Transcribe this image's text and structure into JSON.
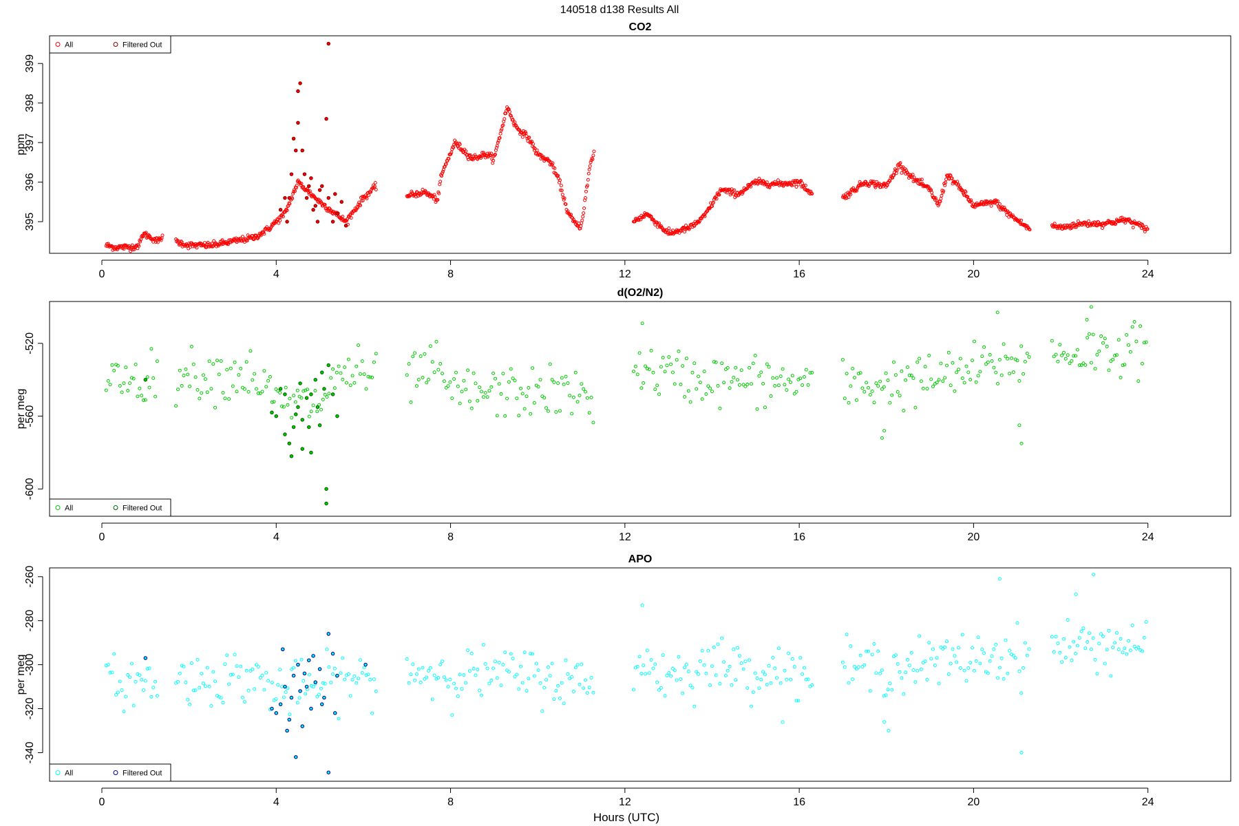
{
  "page_title": "140518   d138   Results All",
  "x_axis_label": "Hours (UTC)",
  "legend_labels": {
    "all": "All",
    "filtered": "Filtered Out"
  },
  "chart_data": [
    {
      "type": "scatter",
      "title": "CO2",
      "ylabel": "ppm",
      "xlim": [
        -1.2,
        25.9
      ],
      "ylim": [
        394.2,
        399.7
      ],
      "xticks": [
        0,
        4,
        8,
        12,
        16,
        20,
        24
      ],
      "yticks": [
        395,
        396,
        397,
        398,
        399
      ],
      "legend_position": "top-left",
      "colors": {
        "all": "#ff0000",
        "filtered": "#8b0000"
      },
      "profile": [
        [
          0.1,
          394.4
        ],
        [
          0.3,
          394.35
        ],
        [
          0.7,
          394.36
        ],
        [
          0.85,
          394.4
        ],
        [
          0.95,
          394.7
        ],
        [
          1.3,
          394.5
        ],
        [
          1.35,
          394.6
        ],
        [
          1.7,
          394.5
        ],
        [
          2.0,
          394.4
        ],
        [
          2.5,
          394.4
        ],
        [
          3.0,
          394.5
        ],
        [
          3.5,
          394.6
        ],
        [
          3.8,
          394.8
        ],
        [
          4.2,
          395.2
        ],
        [
          4.5,
          396.0
        ],
        [
          5.0,
          395.5
        ],
        [
          5.6,
          395.0
        ],
        [
          6.0,
          395.6
        ],
        [
          6.3,
          395.9
        ],
        [
          7.0,
          395.65
        ],
        [
          7.4,
          395.75
        ],
        [
          7.7,
          395.55
        ],
        [
          7.8,
          396.2
        ],
        [
          8.1,
          397.0
        ],
        [
          8.3,
          396.8
        ],
        [
          8.5,
          396.6
        ],
        [
          8.8,
          396.7
        ],
        [
          9.0,
          396.6
        ],
        [
          9.3,
          397.9
        ],
        [
          9.5,
          397.4
        ],
        [
          9.8,
          397.1
        ],
        [
          10.0,
          396.7
        ],
        [
          10.3,
          396.5
        ],
        [
          10.5,
          396.0
        ],
        [
          10.7,
          395.2
        ],
        [
          10.9,
          394.9
        ],
        [
          11.0,
          394.9
        ],
        [
          11.2,
          396.4
        ],
        [
          11.3,
          396.8
        ],
        [
          12.2,
          395.0
        ],
        [
          12.5,
          395.2
        ],
        [
          12.8,
          394.9
        ],
        [
          13.0,
          394.7
        ],
        [
          13.5,
          394.85
        ],
        [
          13.8,
          395.1
        ],
        [
          14.2,
          395.8
        ],
        [
          14.6,
          395.7
        ],
        [
          15.0,
          396.0
        ],
        [
          15.5,
          395.95
        ],
        [
          16.0,
          396.0
        ],
        [
          16.3,
          395.7
        ],
        [
          17.0,
          395.6
        ],
        [
          17.5,
          396.0
        ],
        [
          18.0,
          395.9
        ],
        [
          18.3,
          396.45
        ],
        [
          18.6,
          396.1
        ],
        [
          19.0,
          395.8
        ],
        [
          19.2,
          395.4
        ],
        [
          19.4,
          396.2
        ],
        [
          19.8,
          395.7
        ],
        [
          20.0,
          395.4
        ],
        [
          20.5,
          395.5
        ],
        [
          20.8,
          395.2
        ],
        [
          21.3,
          394.8
        ],
        [
          21.8,
          394.9
        ],
        [
          22.0,
          394.85
        ],
        [
          22.5,
          394.95
        ],
        [
          23.0,
          394.95
        ],
        [
          23.5,
          395.05
        ],
        [
          24.0,
          394.8
        ]
      ],
      "segments": [
        [
          0.1,
          1.4
        ],
        [
          1.7,
          6.3
        ],
        [
          7.0,
          11.3
        ],
        [
          12.2,
          16.3
        ],
        [
          17.0,
          21.3
        ],
        [
          21.8,
          24.0
        ]
      ],
      "filtered_points": [
        [
          4.1,
          395.3
        ],
        [
          4.2,
          395.6
        ],
        [
          4.25,
          395.0
        ],
        [
          4.3,
          395.6
        ],
        [
          4.35,
          396.2
        ],
        [
          4.4,
          397.1
        ],
        [
          4.45,
          396.8
        ],
        [
          4.5,
          398.3
        ],
        [
          4.55,
          398.5
        ],
        [
          4.6,
          396.8
        ],
        [
          4.65,
          396.2
        ],
        [
          4.7,
          395.6
        ],
        [
          4.75,
          395.9
        ],
        [
          4.8,
          396.1
        ],
        [
          4.9,
          395.4
        ],
        [
          5.0,
          395.8
        ],
        [
          5.05,
          395.9
        ],
        [
          5.15,
          397.6
        ],
        [
          5.2,
          395.6
        ],
        [
          5.3,
          395.0
        ],
        [
          5.4,
          395.2
        ],
        [
          5.5,
          395.5
        ],
        [
          5.6,
          394.9
        ],
        [
          5.2,
          399.5
        ],
        [
          4.5,
          397.5
        ],
        [
          4.95,
          395.0
        ],
        [
          4.85,
          395.3
        ],
        [
          5.35,
          395.7
        ]
      ],
      "scatter_spread": 0.04
    },
    {
      "type": "scatter",
      "title": "d(O2/N2)",
      "ylabel": "per meg",
      "xlim": [
        -1.2,
        25.9
      ],
      "ylim": [
        -615,
        -497
      ],
      "xticks": [
        0,
        4,
        8,
        12,
        16,
        20,
        24
      ],
      "yticks": [
        -600,
        -560,
        -520
      ],
      "legend_position": "bottom-left",
      "colors": {
        "all": "#00cc00",
        "filtered": "#006400"
      },
      "profile": [
        [
          0.1,
          -538
        ],
        [
          1.3,
          -540
        ],
        [
          1.7,
          -537
        ],
        [
          3.5,
          -537
        ],
        [
          4.0,
          -553
        ],
        [
          5.0,
          -553
        ],
        [
          5.5,
          -535
        ],
        [
          6.3,
          -540
        ],
        [
          7.0,
          -540
        ],
        [
          7.6,
          -533
        ],
        [
          8.0,
          -547
        ],
        [
          10.5,
          -547
        ],
        [
          11.3,
          -550
        ],
        [
          12.2,
          -535
        ],
        [
          14.0,
          -540
        ],
        [
          16.3,
          -542
        ],
        [
          17.0,
          -544
        ],
        [
          19.0,
          -540
        ],
        [
          20.0,
          -535
        ],
        [
          21.3,
          -528
        ],
        [
          21.8,
          -526
        ],
        [
          24.0,
          -522
        ]
      ],
      "segments": [
        [
          0.1,
          1.3
        ],
        [
          1.7,
          6.3
        ],
        [
          7.0,
          11.3
        ],
        [
          12.2,
          16.3
        ],
        [
          17.0,
          21.3
        ],
        [
          21.8,
          24.0
        ]
      ],
      "filtered_points": [
        [
          3.9,
          -558
        ],
        [
          4.0,
          -560
        ],
        [
          4.1,
          -545
        ],
        [
          4.2,
          -570
        ],
        [
          4.3,
          -575
        ],
        [
          4.4,
          -566
        ],
        [
          4.5,
          -555
        ],
        [
          4.6,
          -562
        ],
        [
          4.7,
          -550
        ],
        [
          4.8,
          -548
        ],
        [
          4.9,
          -540
        ],
        [
          5.0,
          -565
        ],
        [
          5.1,
          -545
        ],
        [
          5.2,
          -532
        ],
        [
          5.3,
          -548
        ],
        [
          5.4,
          -560
        ],
        [
          4.35,
          -582
        ],
        [
          4.6,
          -578
        ],
        [
          4.8,
          -580
        ],
        [
          5.15,
          -608
        ],
        [
          5.15,
          -600
        ],
        [
          4.2,
          -548
        ],
        [
          4.55,
          -542
        ],
        [
          4.95,
          -555
        ],
        [
          5.05,
          -536
        ],
        [
          4.75,
          -566
        ],
        [
          4.45,
          -559
        ],
        [
          1.0,
          -540
        ]
      ],
      "scatter_spread": 7,
      "outliers": [
        [
          12.4,
          -509
        ],
        [
          20.55,
          -503
        ],
        [
          22.7,
          -500
        ],
        [
          21.1,
          -575
        ],
        [
          21.05,
          -565
        ],
        [
          17.9,
          -572
        ],
        [
          17.95,
          -568
        ],
        [
          22.6,
          -507
        ]
      ]
    },
    {
      "type": "scatter",
      "title": "APO",
      "ylabel": "per meg",
      "xlim": [
        -1.2,
        25.9
      ],
      "ylim": [
        -353,
        -256
      ],
      "xticks": [
        0,
        4,
        8,
        12,
        16,
        20,
        24
      ],
      "yticks": [
        -340,
        -320,
        -300,
        -280,
        -260
      ],
      "legend_position": "bottom-left",
      "colors": {
        "all": "#00ffff",
        "filtered": "#00008b"
      },
      "profile": [
        [
          0.1,
          -308
        ],
        [
          1.3,
          -308
        ],
        [
          1.7,
          -307
        ],
        [
          3.5,
          -305
        ],
        [
          4.0,
          -312
        ],
        [
          5.0,
          -310
        ],
        [
          5.5,
          -306
        ],
        [
          6.3,
          -308
        ],
        [
          7.0,
          -303
        ],
        [
          8.0,
          -304
        ],
        [
          10.0,
          -305
        ],
        [
          11.3,
          -310
        ],
        [
          12.2,
          -298
        ],
        [
          13.0,
          -305
        ],
        [
          14.0,
          -300
        ],
        [
          16.3,
          -305
        ],
        [
          17.0,
          -302
        ],
        [
          19.0,
          -300
        ],
        [
          20.0,
          -297
        ],
        [
          21.3,
          -295
        ],
        [
          21.8,
          -292
        ],
        [
          24.0,
          -290
        ]
      ],
      "segments": [
        [
          0.1,
          1.3
        ],
        [
          1.7,
          6.3
        ],
        [
          7.0,
          11.3
        ],
        [
          12.2,
          16.3
        ],
        [
          17.0,
          21.3
        ],
        [
          21.8,
          24.0
        ]
      ],
      "filtered_points": [
        [
          3.9,
          -320
        ],
        [
          4.0,
          -322
        ],
        [
          4.1,
          -318
        ],
        [
          4.15,
          -293
        ],
        [
          4.2,
          -310
        ],
        [
          4.3,
          -325
        ],
        [
          4.35,
          -315
        ],
        [
          4.4,
          -305
        ],
        [
          4.5,
          -300
        ],
        [
          4.6,
          -328
        ],
        [
          4.7,
          -310
        ],
        [
          4.75,
          -298
        ],
        [
          4.8,
          -320
        ],
        [
          4.9,
          -308
        ],
        [
          5.0,
          -302
        ],
        [
          5.1,
          -315
        ],
        [
          5.2,
          -286
        ],
        [
          5.3,
          -295
        ],
        [
          5.35,
          -322
        ],
        [
          5.4,
          -305
        ],
        [
          4.25,
          -330
        ],
        [
          4.55,
          -312
        ],
        [
          4.85,
          -296
        ],
        [
          5.05,
          -318
        ],
        [
          4.45,
          -342
        ],
        [
          5.2,
          -349
        ],
        [
          4.65,
          -304
        ],
        [
          6.05,
          -300
        ],
        [
          1.0,
          -297
        ]
      ],
      "scatter_spread": 6,
      "outliers": [
        [
          12.4,
          -273
        ],
        [
          20.6,
          -261
        ],
        [
          22.75,
          -259
        ],
        [
          21.1,
          -340
        ],
        [
          18.05,
          -330
        ],
        [
          17.95,
          -326
        ],
        [
          22.35,
          -268
        ]
      ]
    }
  ]
}
